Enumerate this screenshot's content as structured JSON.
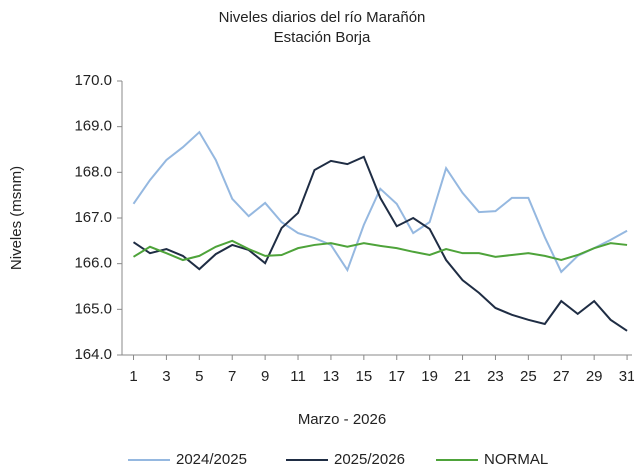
{
  "chart_data": {
    "type": "line",
    "title": "Niveles diarios del río Marañón",
    "subtitle": "Estación Borja",
    "xlabel": "Marzo - 2026",
    "ylabel": "Niveles (msnm)",
    "x": [
      1,
      2,
      3,
      4,
      5,
      6,
      7,
      8,
      9,
      10,
      11,
      12,
      13,
      14,
      15,
      16,
      17,
      18,
      19,
      20,
      21,
      22,
      23,
      24,
      25,
      26,
      27,
      28,
      29,
      30,
      31
    ],
    "series": [
      {
        "name": "2024/2025",
        "color": "#95b8e0",
        "values": [
          167.31,
          167.83,
          168.27,
          168.55,
          168.88,
          168.27,
          167.42,
          167.04,
          167.33,
          166.91,
          166.67,
          166.56,
          166.41,
          165.86,
          166.85,
          167.64,
          167.31,
          166.67,
          166.91,
          168.09,
          167.55,
          167.13,
          167.15,
          167.44,
          167.44,
          166.58,
          165.82,
          166.17,
          166.34,
          166.52,
          166.72
        ]
      },
      {
        "name": "2025/2026",
        "color": "#1f2d44",
        "values": [
          166.47,
          166.23,
          166.32,
          166.17,
          165.88,
          166.21,
          166.41,
          166.3,
          166.01,
          166.78,
          167.11,
          168.05,
          168.25,
          168.18,
          168.34,
          167.44,
          166.82,
          167.0,
          166.76,
          166.08,
          165.64,
          165.36,
          165.03,
          164.88,
          164.77,
          164.68,
          165.18,
          164.9,
          165.18,
          164.77,
          164.53
        ]
      },
      {
        "name": "NORMAL",
        "color": "#4ea33a",
        "values": [
          166.15,
          166.37,
          166.23,
          166.08,
          166.17,
          166.37,
          166.5,
          166.32,
          166.17,
          166.19,
          166.34,
          166.41,
          166.45,
          166.37,
          166.45,
          166.39,
          166.34,
          166.26,
          166.19,
          166.32,
          166.23,
          166.23,
          166.15,
          166.19,
          166.23,
          166.17,
          166.08,
          166.19,
          166.34,
          166.45,
          166.41
        ]
      }
    ],
    "xlim": [
      0.3,
      31.3
    ],
    "xticks": [
      1,
      3,
      5,
      7,
      9,
      11,
      13,
      15,
      17,
      19,
      21,
      23,
      25,
      27,
      29,
      31
    ],
    "ylim": [
      164,
      170
    ],
    "yticks": [
      {
        "value": 164,
        "label": "164.0"
      },
      {
        "value": 165,
        "label": "165.0"
      },
      {
        "value": 166,
        "label": "166.0"
      },
      {
        "value": 167,
        "label": "167.0"
      },
      {
        "value": 168,
        "label": "168.0"
      },
      {
        "value": 169,
        "label": "169.0"
      },
      {
        "value": 170,
        "label": "170.0"
      }
    ],
    "grid": false,
    "legend": "bottom"
  }
}
